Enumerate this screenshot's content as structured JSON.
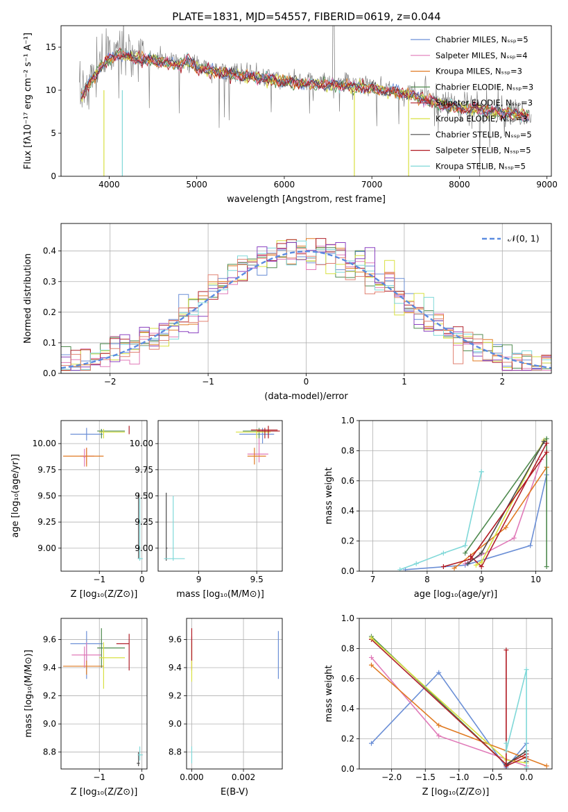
{
  "title": "PLATE=1831, MJD=54557, FIBERID=0619, z=0.044",
  "colors": [
    "#6b8fd6",
    "#e07ab8",
    "#e07a22",
    "#4f8a4f",
    "#b0202a",
    "#d8e040",
    "#4a4a4a",
    "#b01820",
    "#7fd8d8"
  ],
  "chart_data": [
    {
      "type": "line",
      "id": "spectrum",
      "title": "PLATE=1831, MJD=54557, FIBERID=0619, z=0.044",
      "xlabel": "wavelength [Angstrom, rest frame]",
      "ylabel": "Flux [fλ10⁻¹⁷ erg cm⁻² s⁻¹ A⁻¹]",
      "xlim": [
        3450,
        9050
      ],
      "ylim": [
        0,
        17.5
      ],
      "xticks": [
        4000,
        5000,
        6000,
        7000,
        8000,
        9000
      ],
      "yticks": [
        0,
        5,
        10,
        15
      ],
      "legend_position": "top-right",
      "legend": [
        "Chabrier MILES, Nₛₛₚ=5",
        "Salpeter MILES, Nₛₛₚ=4",
        "Kroupa MILES, Nₛₛₚ=3",
        "Chabrier ELODIE, Nₛₛₚ=3",
        "Salpeter ELODIE, Nₛₛₚ=3",
        "Kroupa ELODIE, Nₛₛₚ=3",
        "Chabrier STELIB, Nₛₛₚ=5",
        "Salpeter STELIB, Nₛₛₚ=5",
        "Kroupa STELIB, Nₛₛₚ=5"
      ],
      "continuum_x": [
        3650,
        3800,
        3950,
        4100,
        4300,
        4600,
        4800,
        4900,
        5000,
        5200,
        5500,
        5800,
        6000,
        6300,
        6600,
        6900,
        7200,
        7500,
        7800,
        8100,
        8400,
        8800
      ],
      "continuum_y": [
        9.0,
        11.5,
        13.5,
        14.5,
        14.0,
        13.6,
        13.2,
        13.8,
        13.0,
        12.4,
        12.0,
        11.6,
        11.3,
        11.0,
        10.9,
        10.6,
        10.2,
        9.6,
        8.6,
        8.1,
        7.8,
        7.3
      ]
    },
    {
      "type": "bar",
      "id": "residuals",
      "xlabel": "(data-model)/error",
      "ylabel": "Normed distribution",
      "xlim": [
        -2.5,
        2.5
      ],
      "ylim": [
        0,
        0.49
      ],
      "xticks": [
        -2,
        -1,
        0,
        1,
        2
      ],
      "yticks": [
        0.0,
        0.1,
        0.2,
        0.3,
        0.4
      ],
      "legend": [
        "𝒩(0, 1)"
      ],
      "bin_width": 0.1,
      "grid": true
    },
    {
      "type": "scatter",
      "id": "age-vs-Z",
      "xlabel": "Z [log₁₀(Z/Z⊙)]",
      "ylabel": "age  [log₁₀(age/yr)]",
      "xlim": [
        -1.9,
        0.12
      ],
      "ylim": [
        8.78,
        10.22
      ],
      "xticks": [
        -1,
        0
      ],
      "yticks": [
        9.0,
        9.25,
        9.5,
        9.75,
        10.0
      ],
      "grid": true
    },
    {
      "type": "scatter",
      "id": "age-vs-mass",
      "xlabel": "mass [log₁₀(M/M⊙)]",
      "xlim": [
        8.65,
        9.72
      ],
      "ylim": [
        8.78,
        10.22
      ],
      "xticks": [
        9.0,
        9.5
      ],
      "yticks": [
        9.0,
        9.25,
        9.5,
        9.75,
        10.0
      ],
      "grid": true
    },
    {
      "type": "line",
      "id": "massweight-vs-age",
      "xlabel": "age  [log₁₀(age/yr)]",
      "ylabel": "mass weight",
      "xlim": [
        6.75,
        10.3
      ],
      "ylim": [
        0,
        1.0
      ],
      "xticks": [
        7,
        8,
        9,
        10
      ],
      "yticks": [
        0.0,
        0.2,
        0.4,
        0.6,
        0.8,
        1.0
      ],
      "grid": true,
      "series": [
        {
          "x": [
            7.6,
            8.7,
            9.9,
            10.2
          ],
          "y": [
            0.01,
            0.04,
            0.17,
            0.64
          ]
        },
        {
          "x": [
            8.7,
            9.6,
            10.1
          ],
          "y": [
            0.05,
            0.22,
            0.74
          ]
        },
        {
          "x": [
            8.5,
            9.45,
            10.2
          ],
          "y": [
            0.02,
            0.29,
            0.69
          ]
        },
        {
          "x": [
            8.7,
            10.2,
            10.2
          ],
          "y": [
            0.12,
            0.88,
            0.03
          ]
        },
        {
          "x": [
            8.8,
            9.0,
            10.2
          ],
          "y": [
            0.1,
            0.03,
            0.85
          ]
        },
        {
          "x": [
            8.9,
            9.0,
            10.15
          ],
          "y": [
            0.04,
            0.06,
            0.87
          ]
        },
        {
          "x": [
            8.75,
            9.0,
            10.15
          ],
          "y": [
            0.05,
            0.12,
            0.86
          ]
        },
        {
          "x": [
            8.3,
            8.8,
            10.2
          ],
          "y": [
            0.03,
            0.08,
            0.79
          ]
        },
        {
          "x": [
            7.5,
            7.8,
            8.3,
            8.7,
            9.0,
            9.0
          ],
          "y": [
            0.01,
            0.05,
            0.12,
            0.17,
            0.66,
            0.66
          ]
        }
      ]
    },
    {
      "type": "scatter",
      "id": "mass-vs-Z",
      "xlabel": "Z [log₁₀(Z/Z⊙)]",
      "ylabel": "mass [log₁₀(M/M⊙)]",
      "xlim": [
        -1.9,
        0.12
      ],
      "ylim": [
        8.68,
        9.75
      ],
      "xticks": [
        -1,
        0
      ],
      "yticks": [
        8.8,
        9.0,
        9.2,
        9.4,
        9.6
      ],
      "grid": true
    },
    {
      "type": "scatter",
      "id": "mass-vs-ebv",
      "xlabel": "E(B-V)",
      "xlim": [
        -0.0002,
        0.0035
      ],
      "ylim": [
        8.68,
        9.75
      ],
      "xticks": [
        0.0,
        0.002
      ],
      "yticks": [
        8.8,
        9.0,
        9.2,
        9.4,
        9.6
      ],
      "grid": true
    },
    {
      "type": "line",
      "id": "massweight-vs-Z",
      "xlabel": "Z [log₁₀(Z/Z⊙)]",
      "ylabel": "mass weight",
      "xlim": [
        -2.48,
        0.38
      ],
      "ylim": [
        0,
        1.0
      ],
      "xticks": [
        -2.0,
        -1.5,
        -1.0,
        -0.5,
        0.0
      ],
      "yticks": [
        0.0,
        0.2,
        0.4,
        0.6,
        0.8,
        1.0
      ],
      "grid": true,
      "series": [
        {
          "x": [
            -2.3,
            -1.3,
            -0.3,
            0.0
          ],
          "y": [
            0.17,
            0.64,
            0.01,
            0.17
          ]
        },
        {
          "x": [
            -2.3,
            -1.3,
            0.0
          ],
          "y": [
            0.74,
            0.22,
            0.02
          ]
        },
        {
          "x": [
            -2.3,
            -1.3,
            0.3
          ],
          "y": [
            0.69,
            0.29,
            0.02
          ]
        },
        {
          "x": [
            -2.3,
            -0.3,
            0.0
          ],
          "y": [
            0.88,
            0.03,
            0.12
          ]
        },
        {
          "x": [
            -2.3,
            -0.3,
            0.0
          ],
          "y": [
            0.86,
            0.03,
            0.1
          ]
        },
        {
          "x": [
            -2.3,
            -0.3,
            0.0
          ],
          "y": [
            0.87,
            0.06,
            0.04
          ]
        },
        {
          "x": [
            -0.3,
            0.0,
            0.0
          ],
          "y": [
            0.03,
            0.12,
            0.05
          ]
        },
        {
          "x": [
            -0.3,
            -0.3,
            0.0
          ],
          "y": [
            0.79,
            0.02,
            0.08
          ]
        },
        {
          "x": [
            -0.3,
            -0.3,
            0.0,
            0.0
          ],
          "y": [
            0.17,
            0.12,
            0.66,
            0.01
          ]
        }
      ]
    }
  ]
}
